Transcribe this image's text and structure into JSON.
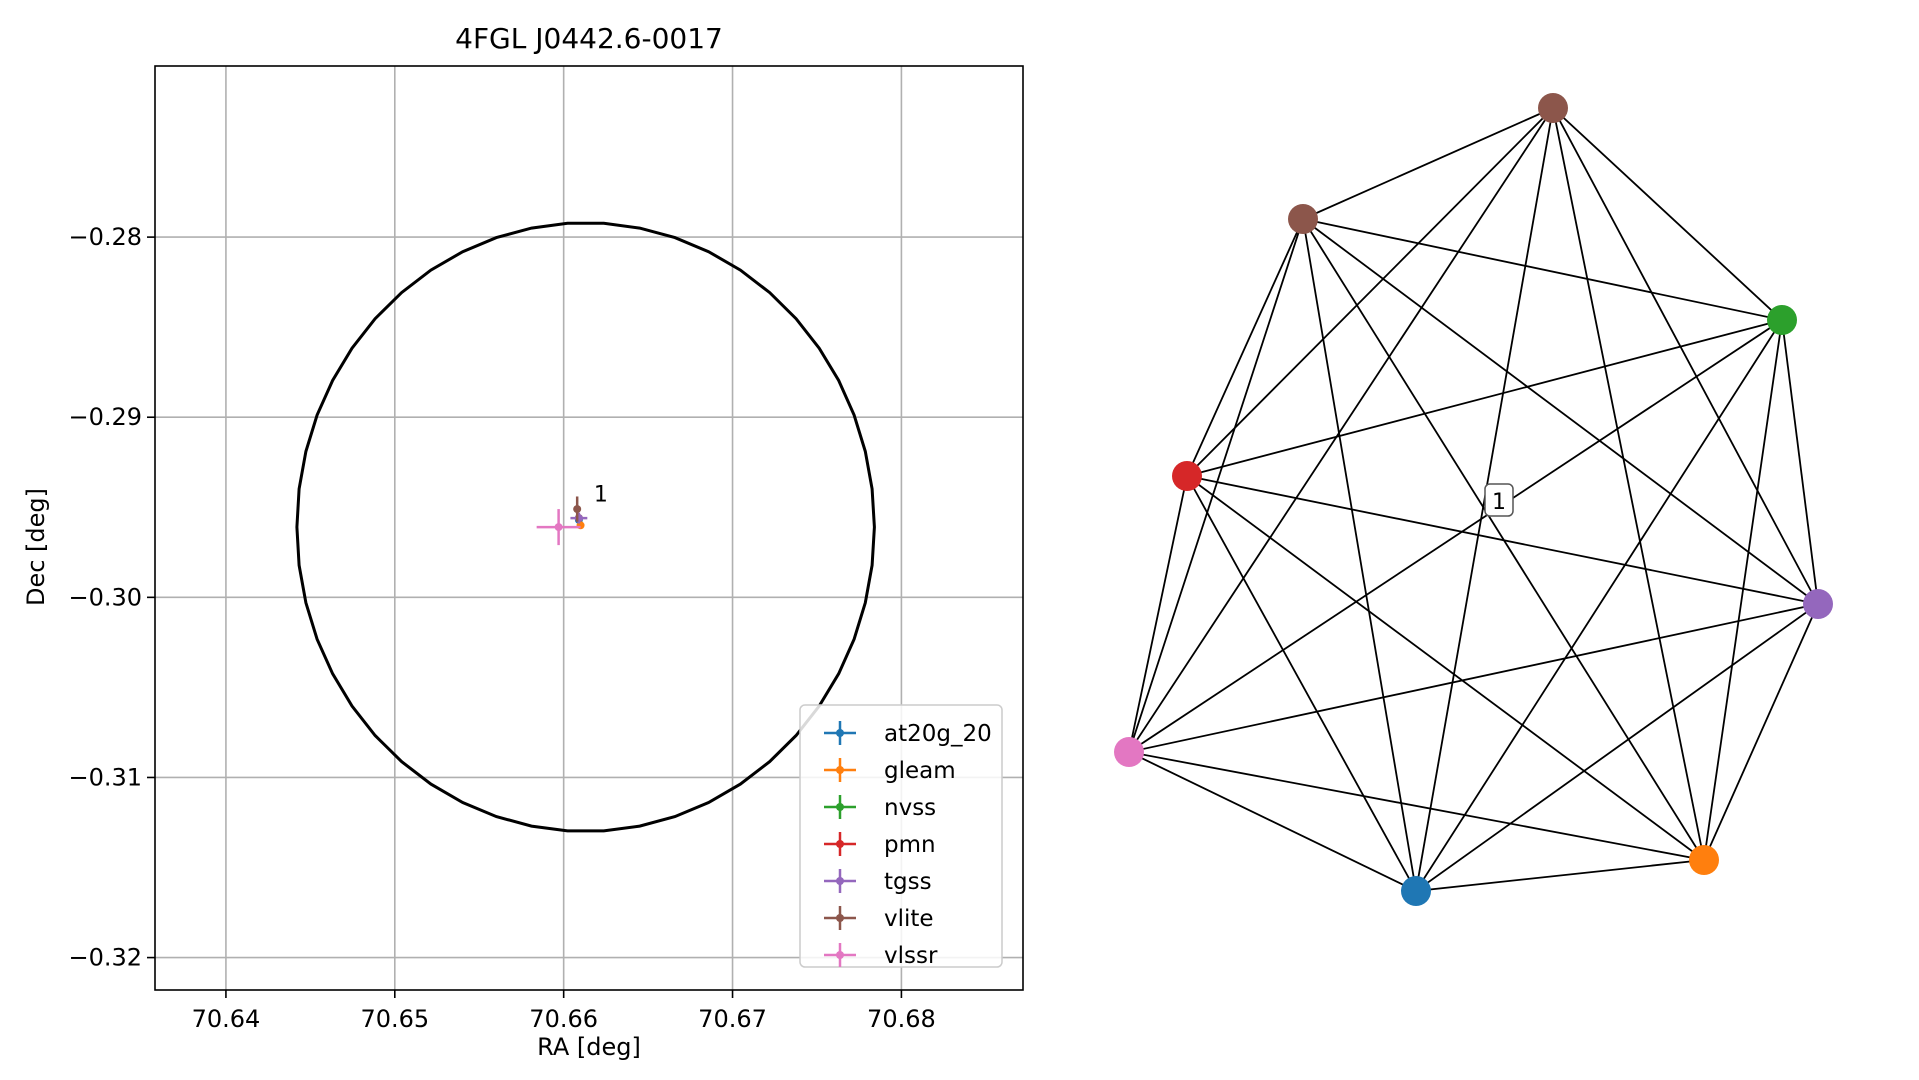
{
  "chart_data": [
    {
      "type": "scatter",
      "title": "4FGL J0442.6-0017",
      "xlabel": "RA [deg]",
      "ylabel": "Dec [deg]",
      "xlim": [
        70.6358,
        70.6872
      ],
      "ylim": [
        -0.3218,
        -0.2705
      ],
      "xticks": [
        70.64,
        70.65,
        70.66,
        70.67,
        70.68
      ],
      "xtick_labels": [
        "70.64",
        "70.65",
        "70.66",
        "70.67",
        "70.68"
      ],
      "yticks": [
        -0.28,
        -0.29,
        -0.3,
        -0.31,
        -0.32
      ],
      "ytick_labels": [
        "−0.28",
        "−0.29",
        "−0.30",
        "−0.31",
        "−0.32"
      ],
      "grid": true,
      "legend_position": "bottom-right",
      "ellipse": {
        "center": [
          70.6613,
          -0.2961
        ],
        "semi_axes": [
          0.0171,
          0.0169
        ],
        "color": "#000000"
      },
      "annotations": [
        {
          "text": "1",
          "x": 70.6612,
          "y": -0.2948
        }
      ],
      "series": [
        {
          "name": "at20g_20",
          "color": "#1f77b4",
          "x": 70.6609,
          "y": -0.2957,
          "xerr": 0.0001,
          "yerr": 0.0001
        },
        {
          "name": "gleam",
          "color": "#ff7f0e",
          "x": 70.661,
          "y": -0.296,
          "xerr": 0.0002,
          "yerr": 0.0002
        },
        {
          "name": "nvss",
          "color": "#2ca02c",
          "x": 70.6609,
          "y": -0.2956,
          "xerr": 0.0001,
          "yerr": 0.0001
        },
        {
          "name": "pmn",
          "color": "#d62728",
          "x": 70.6609,
          "y": -0.2956,
          "xerr": 0.0001,
          "yerr": 0.0001
        },
        {
          "name": "tgss",
          "color": "#9467bd",
          "x": 70.6609,
          "y": -0.2956,
          "xerr": 0.0005,
          "yerr": 0.0003
        },
        {
          "name": "vlite",
          "color": "#8c564b",
          "x": 70.6608,
          "y": -0.2951,
          "xerr": 0.0002,
          "yerr": 0.0007
        },
        {
          "name": "vlssr",
          "color": "#e377c2",
          "x": 70.6597,
          "y": -0.2961,
          "xerr": 0.0013,
          "yerr": 0.001
        }
      ]
    },
    {
      "type": "graph",
      "center_label": "1",
      "nodes": [
        {
          "name": "vlite",
          "color": "#8c564b"
        },
        {
          "name": "vlite",
          "color": "#8c564b"
        },
        {
          "name": "nvss",
          "color": "#2ca02c"
        },
        {
          "name": "pmn",
          "color": "#d62728"
        },
        {
          "name": "tgss",
          "color": "#9467bd"
        },
        {
          "name": "vlssr",
          "color": "#e377c2"
        },
        {
          "name": "gleam",
          "color": "#ff7f0e"
        },
        {
          "name": "at20g_20",
          "color": "#1f77b4"
        }
      ],
      "edges": "complete"
    }
  ]
}
